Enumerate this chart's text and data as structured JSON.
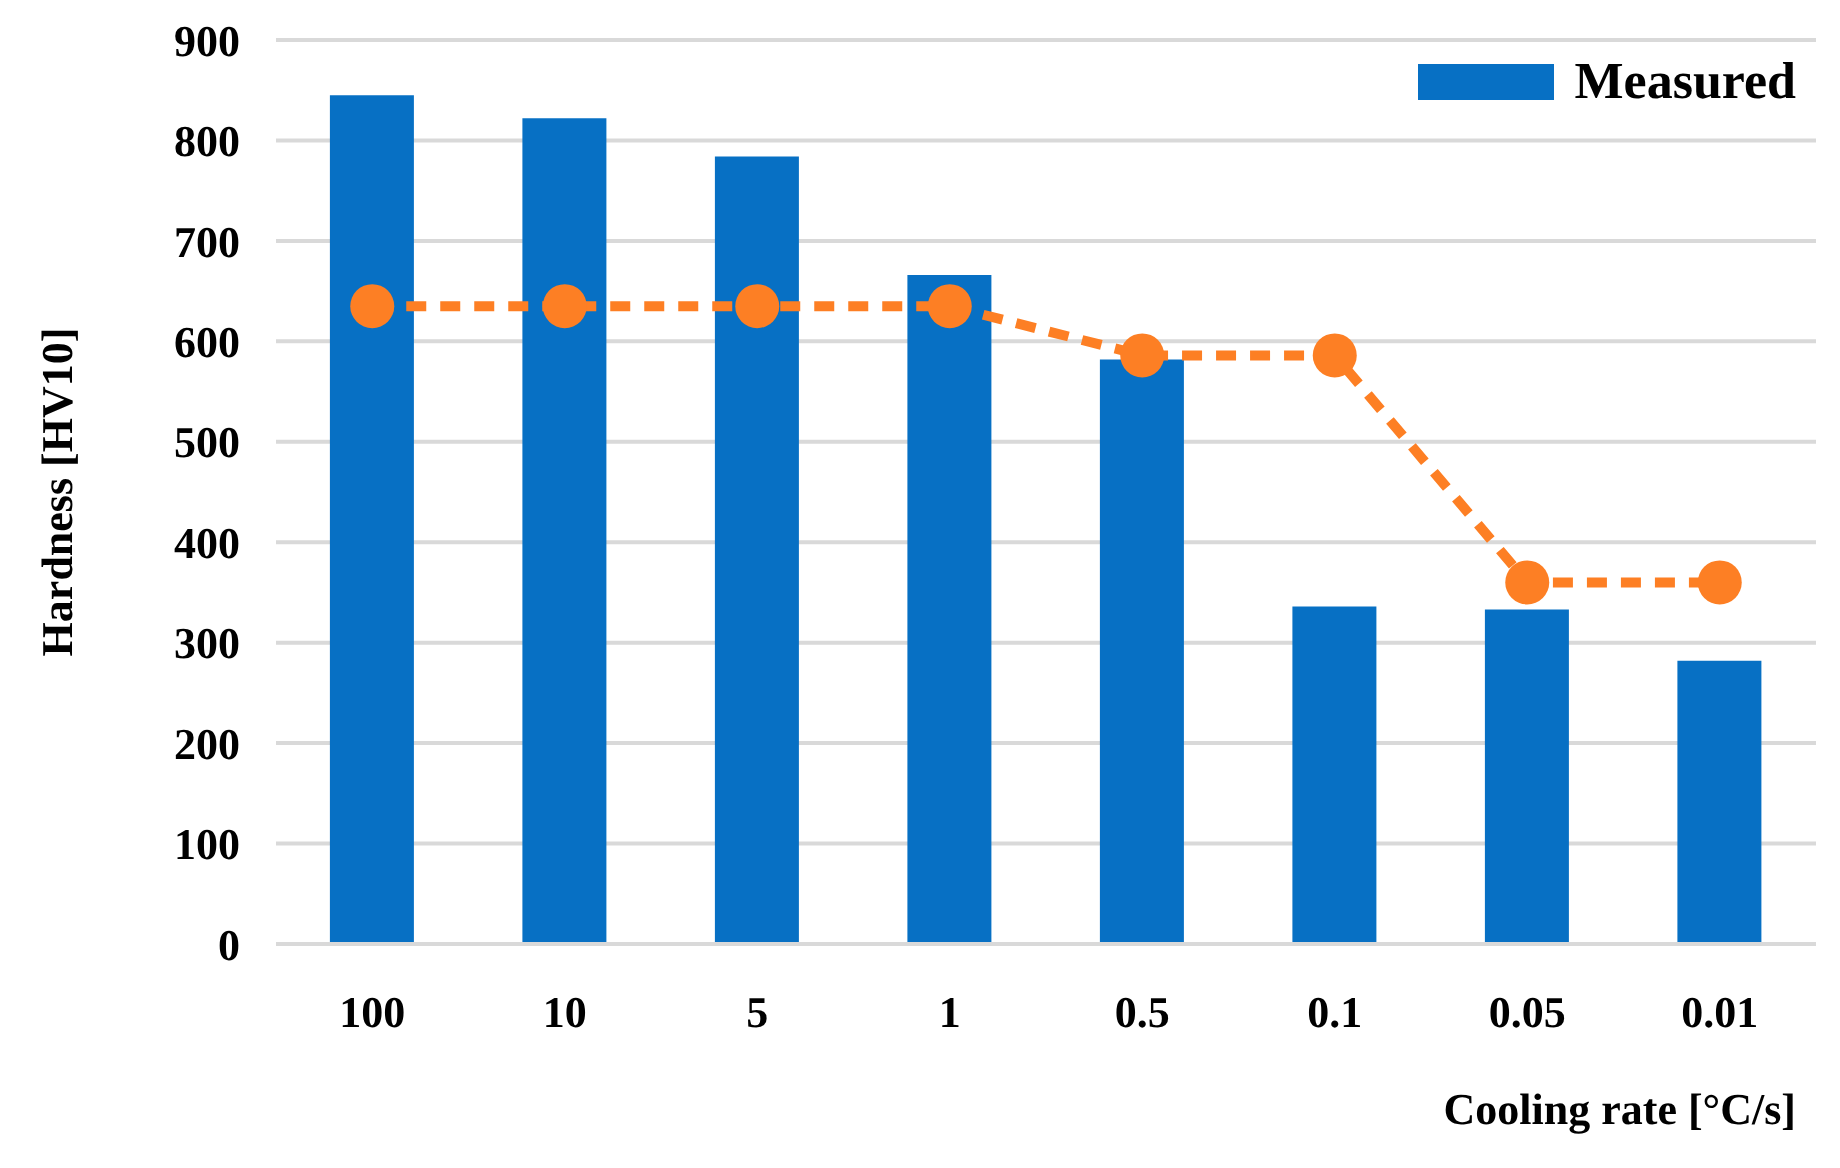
{
  "chart_data": {
    "type": "bar",
    "xlabel": "Cooling rate [°C/s]",
    "ylabel": "Hardness [HV10]",
    "categories": [
      "100",
      "10",
      "5",
      "1",
      "0.5",
      "0.1",
      "0.05",
      "0.01"
    ],
    "series": [
      {
        "name": "Measured",
        "color": "#0770c4",
        "values": [
          845,
          822,
          784,
          666,
          582,
          336,
          333,
          282
        ]
      },
      {
        "type": "line",
        "color": "#fd7f24",
        "values": [
          635,
          635,
          635,
          635,
          586,
          586,
          360,
          360
        ],
        "marker": "circle",
        "line_style": "dashed"
      }
    ],
    "ylim": [
      0,
      900
    ],
    "yticks": [
      0,
      100,
      200,
      300,
      400,
      500,
      600,
      700,
      800,
      900
    ],
    "grid": "y",
    "legend": "top right"
  }
}
